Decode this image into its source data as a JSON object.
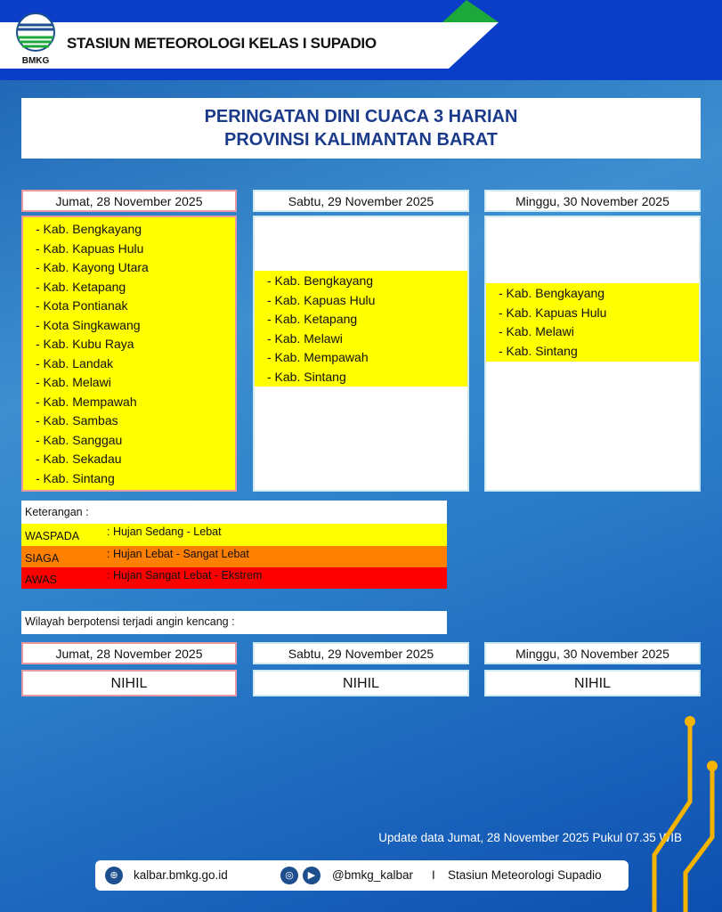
{
  "header": {
    "logo_text": "BMKG",
    "station": "STASIUN METEOROLOGI KELAS I SUPADIO"
  },
  "title": {
    "line1": "PERINGATAN DINI CUACA 3 HARIAN",
    "line2": "PROVINSI  KALIMANTAN  BARAT"
  },
  "days": [
    {
      "date": "Jumat, 28 November 2025",
      "level": "WASPADA",
      "regions": [
        "Kab. Bengkayang",
        "Kab. Kapuas Hulu",
        "Kab. Kayong Utara",
        "Kab. Ketapang",
        "Kota Pontianak",
        "Kota Singkawang",
        "Kab. Kubu Raya",
        "Kab. Landak",
        "Kab. Melawi",
        "Kab. Mempawah",
        "Kab. Sambas",
        "Kab. Sanggau",
        "Kab. Sekadau",
        "Kab. Sintang"
      ]
    },
    {
      "date": "Sabtu, 29 November 2025",
      "level": "WASPADA",
      "regions": [
        "Kab. Bengkayang",
        "Kab. Kapuas Hulu",
        "Kab. Ketapang",
        "Kab. Melawi",
        "Kab. Mempawah",
        "Kab. Sintang"
      ]
    },
    {
      "date": "Minggu, 30 November 2025",
      "level": "WASPADA",
      "regions": [
        "Kab. Bengkayang",
        "Kab. Kapuas Hulu",
        "Kab. Melawi",
        "Kab. Sintang"
      ]
    }
  ],
  "legend": {
    "title": "Keterangan :",
    "items": [
      {
        "key": "WASPADA",
        "desc": ": Hujan Sedang - Lebat",
        "color": "#ffff00"
      },
      {
        "key": "SIAGA",
        "desc": ": Hujan Lebat - Sangat Lebat",
        "color": "#ff7f00"
      },
      {
        "key": "AWAS",
        "desc": ": Hujan Sangat Lebat - Ekstrem",
        "color": "#ff0000"
      }
    ]
  },
  "wind": {
    "label": "Wilayah berpotensi terjadi angin kencang :",
    "days": [
      {
        "date": "Jumat, 28 November 2025",
        "value": "NIHIL"
      },
      {
        "date": "Sabtu, 29 November 2025",
        "value": "NIHIL"
      },
      {
        "date": "Minggu, 30 November 2025",
        "value": "NIHIL"
      }
    ]
  },
  "update": "Update data Jumat, 28 November 2025 Pukul 07.35 WIB",
  "footer": {
    "website": "kalbar.bmkg.go.id",
    "social": "@bmkg_kalbar",
    "separator": "I",
    "station": "Stasiun Meteorologi Supadio",
    "icons": [
      "globe-icon",
      "instagram-icon",
      "youtube-icon"
    ]
  }
}
